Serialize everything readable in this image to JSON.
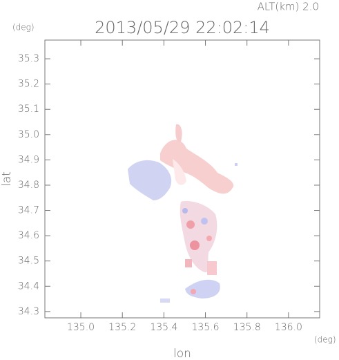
{
  "chart_data": {
    "type": "map",
    "title": "2013/05/29 22:02:14",
    "annotation": "ALT(km) 2.0",
    "y_unit": "(deg)",
    "x_unit": "(deg)",
    "x_label": "lon",
    "y_label": "lat",
    "xlim": [
      134.827,
      136.15
    ],
    "ylim": [
      34.275,
      35.374
    ],
    "xticks": [
      {
        "value": 135,
        "label": "135.0"
      },
      135.2,
      135.4,
      135.6,
      135.8,
      {
        "value": 136,
        "label": "136.0"
      }
    ],
    "yticks": [
      34.3,
      34.4,
      34.5,
      34.6,
      34.7,
      34.8,
      34.9,
      {
        "value": 35,
        "label": "35.0"
      },
      35.1,
      35.2,
      35.3
    ]
  }
}
